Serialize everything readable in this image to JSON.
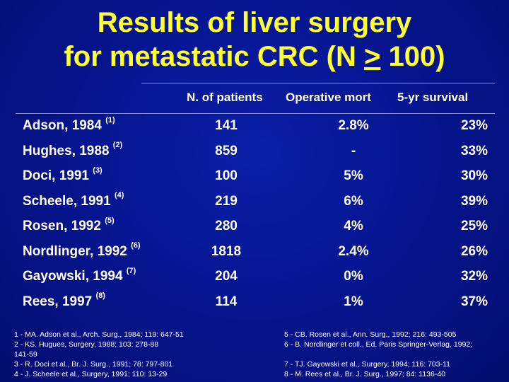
{
  "title": {
    "line1": "Results of liver surgery",
    "line2_prefix": "for metastatic CRC (N ",
    "line2_symbol": ">",
    "line2_suffix": " 100)"
  },
  "table": {
    "headers": [
      "N. of patients",
      "Operative mort",
      "5-yr survival"
    ],
    "rows": [
      {
        "name": "Adson, 1984",
        "ref": "(1)",
        "patients": "141",
        "mort": "2.8%",
        "survival": "23%"
      },
      {
        "name": "Hughes, 1988",
        "ref": "(2)",
        "patients": "859",
        "mort": "-",
        "survival": "33%"
      },
      {
        "name": "Doci, 1991",
        "ref": "(3)",
        "patients": "100",
        "mort": "5%",
        "survival": "30%"
      },
      {
        "name": "Scheele, 1991",
        "ref": "(4)",
        "patients": "219",
        "mort": "6%",
        "survival": "39%"
      },
      {
        "name": "Rosen, 1992",
        "ref": "(5)",
        "patients": "280",
        "mort": "4%",
        "survival": "25%"
      },
      {
        "name": "Nordlinger, 1992",
        "ref": "(6)",
        "patients": "1818",
        "mort": "2.4%",
        "survival": "26%"
      },
      {
        "name": "Gayowski, 1994",
        "ref": "(7)",
        "patients": "204",
        "mort": "0%",
        "survival": "32%"
      },
      {
        "name": "Rees, 1997",
        "ref": "(8)",
        "patients": "114",
        "mort": "1%",
        "survival": "37%"
      }
    ]
  },
  "references": {
    "left": [
      "1 - MA. Adson et al., Arch. Surg., 1984; 119: 647-51",
      "2 - KS. Hugues, Surgery, 1988; 103: 278-88",
      "141-59",
      "3 - R. Doci et al., Br. J. Surg., 1991; 78: 797-801",
      "4 - J. Scheele et al., Surgery, 1991; 110: 13-29"
    ],
    "right": [
      "5 - CB. Rosen et al., Ann. Surg., 1992; 216: 493-505",
      "6 - B. Nordlinger et coll., Ed. Paris Springer-Verlag, 1992;",
      "",
      "7 - TJ. Gayowski et al., Surgery, 1994; 116: 703-11",
      "8 - M. Rees et al., Br. J. Surg., 1997; 84: 1136-40"
    ]
  },
  "colors": {
    "background": "#061591",
    "title": "#ffff33",
    "text": "#ffffff"
  }
}
